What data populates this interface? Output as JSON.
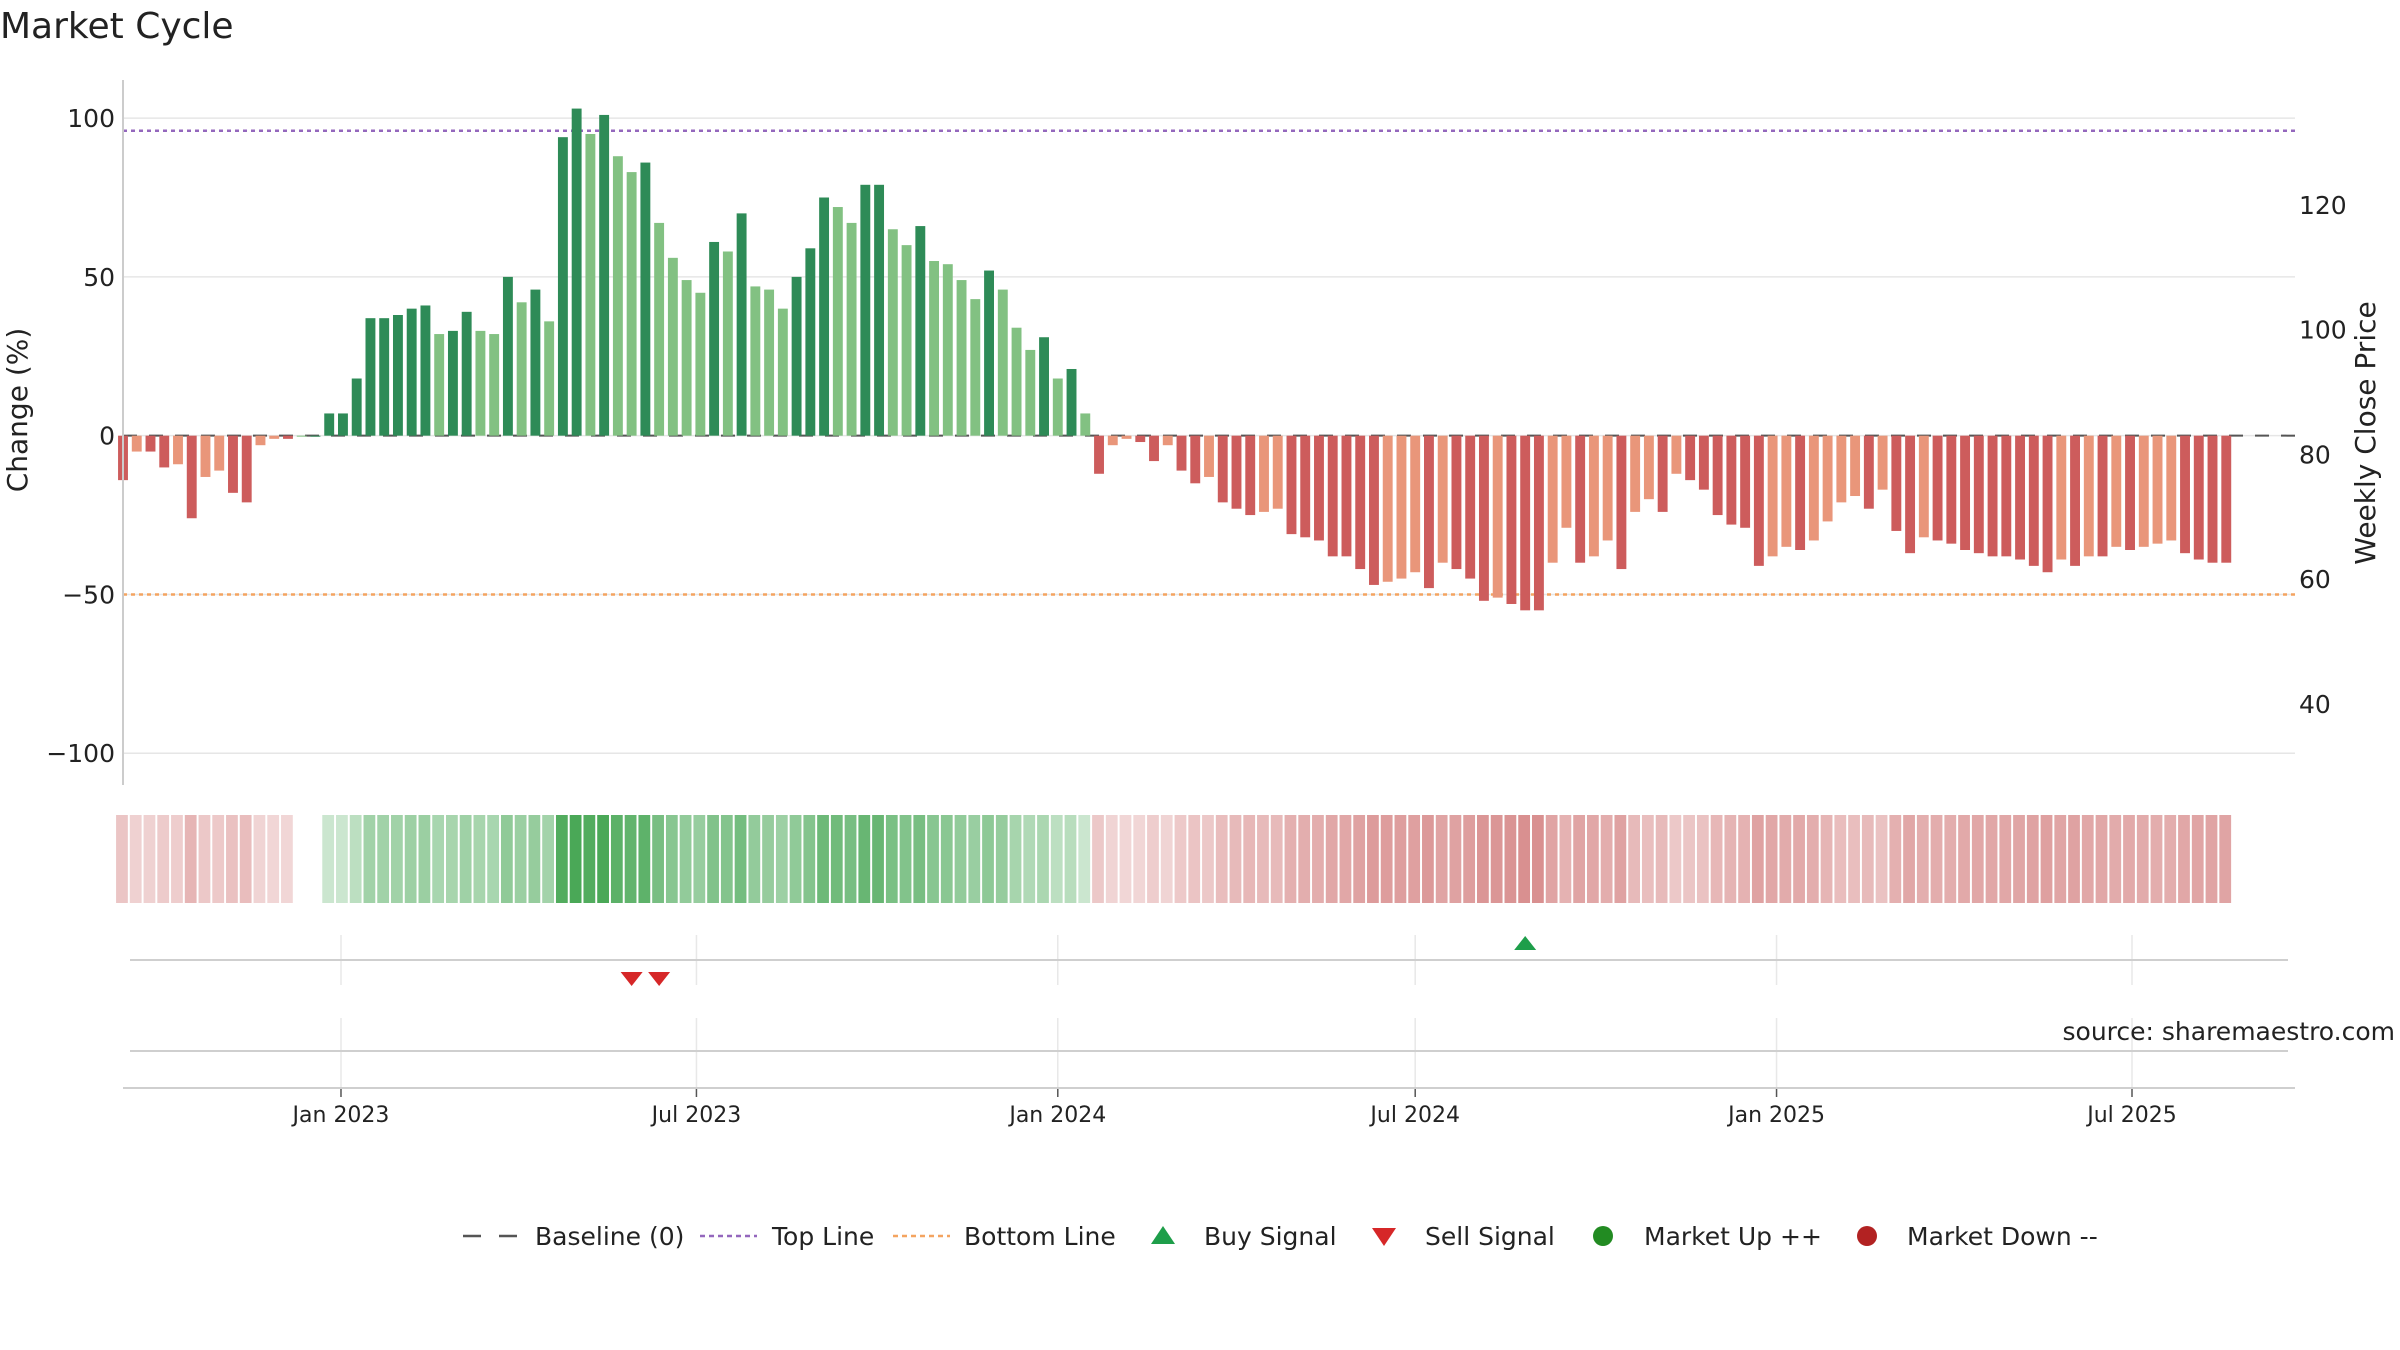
{
  "chart_data": {
    "type": "bar",
    "title": "Market Cycle",
    "ylabel": "Change (%)",
    "y2label": "Weekly Close Price",
    "ylim": [
      -110,
      112
    ],
    "y2lim": [
      27,
      140
    ],
    "yticks": [
      100,
      50,
      0,
      -50,
      -100
    ],
    "yticklabels": [
      "100",
      "50",
      "0",
      "−50",
      "−100"
    ],
    "y2ticks": [
      120,
      100,
      80,
      60,
      40
    ],
    "y2ticklabels": [
      "120",
      "100",
      "80",
      "60",
      "40"
    ],
    "x_start": "2022-09-12",
    "x_end": "2025-09-22",
    "xticks": [
      {
        "date": "2023-01-01",
        "label": "Jan 2023"
      },
      {
        "date": "2023-07-01",
        "label": "Jul 2023"
      },
      {
        "date": "2024-01-01",
        "label": "Jan 2024"
      },
      {
        "date": "2024-07-01",
        "label": "Jul 2024"
      },
      {
        "date": "2025-01-01",
        "label": "Jan 2025"
      },
      {
        "date": "2025-07-01",
        "label": "Jul 2025"
      }
    ],
    "first_week": "2022-09-12",
    "grid": true,
    "top_line": 96,
    "bottom_line": -50,
    "baseline": 0,
    "values": [
      -14,
      -5,
      -5,
      -10,
      -9,
      -26,
      -13,
      -11,
      -18,
      -21,
      -3,
      -1,
      -1,
      0,
      0,
      7,
      7,
      18,
      37,
      37,
      38,
      40,
      41,
      32,
      33,
      39,
      33,
      32,
      50,
      42,
      46,
      36,
      94,
      103,
      95,
      101,
      88,
      83,
      86,
      67,
      56,
      49,
      45,
      61,
      58,
      70,
      47,
      46,
      40,
      50,
      59,
      75,
      72,
      67,
      79,
      79,
      65,
      60,
      66,
      55,
      54,
      49,
      43,
      52,
      46,
      34,
      27,
      31,
      18,
      21,
      7,
      -12,
      -3,
      -1,
      -2,
      -8,
      -3,
      -11,
      -15,
      -13,
      -21,
      -23,
      -25,
      -24,
      -23,
      -31,
      -32,
      -33,
      -38,
      -38,
      -42,
      -47,
      -46,
      -45,
      -43,
      -48,
      -40,
      -42,
      -45,
      -52,
      -51,
      -53,
      -55,
      -55,
      -40,
      -29,
      -40,
      -38,
      -33,
      -42,
      -24,
      -20,
      -24,
      -12,
      -14,
      -17,
      -25,
      -28,
      -29,
      -41,
      -38,
      -35,
      -36,
      -33,
      -27,
      -21,
      -19,
      -23,
      -17,
      -30,
      -37,
      -32,
      -33,
      -34,
      -36,
      -37,
      -38,
      -38,
      -39,
      -41,
      -43,
      -39,
      -41,
      -38,
      -38,
      -35,
      -36,
      -35,
      -34,
      -33,
      -37,
      -39,
      -40,
      -40
    ],
    "weekly_close": [],
    "signals": {
      "sell": [
        "2023-05-29",
        "2023-06-12"
      ],
      "buy": [
        "2024-08-26"
      ]
    },
    "colors": {
      "up_strong": "#2e8b57",
      "up_light": "#82c182",
      "down_strong": "#cd5c5c",
      "down_light": "#e9967a",
      "top_line": "#9467bd",
      "bottom_line": "#f4a460",
      "baseline": "#555555",
      "buy": "#1e9e4a",
      "sell": "#d62728",
      "market_up": "#228b22",
      "market_down": "#b22222",
      "regime_up": "#3fa34d",
      "regime_down": "#c24c4c"
    },
    "legend": [
      {
        "label": "Baseline (0)",
        "kind": "baseline"
      },
      {
        "label": "Top Line",
        "kind": "top"
      },
      {
        "label": "Bottom Line",
        "kind": "bottom"
      },
      {
        "label": "Buy Signal",
        "kind": "buy"
      },
      {
        "label": "Sell Signal",
        "kind": "sell"
      },
      {
        "label": "Market Up ++",
        "kind": "mup"
      },
      {
        "label": "Market Down --",
        "kind": "mdown"
      }
    ],
    "legend_position": "bottom-center",
    "source": "source: sharemaestro.com"
  }
}
